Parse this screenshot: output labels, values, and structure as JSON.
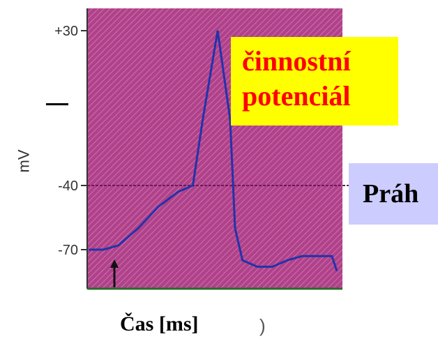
{
  "chart_data": {
    "type": "line",
    "title": "",
    "xlabel": "Čas [ms]",
    "ylabel": "mV",
    "yticks": [
      "+30",
      "-40",
      "-70"
    ],
    "ytick_values": [
      30,
      -40,
      -70
    ],
    "ylim": [
      -80,
      35
    ],
    "threshold": -40,
    "series": [
      {
        "x": [
          0,
          6,
          12,
          20,
          28,
          36,
          42,
          46,
          52,
          57,
          59,
          62,
          68,
          74,
          80,
          86,
          92,
          98,
          100
        ],
        "y": [
          -70,
          -70,
          -68,
          -60,
          -50,
          -43,
          -40,
          -10,
          30,
          -10,
          -60,
          -75,
          -78,
          -78,
          -75,
          -73,
          -73,
          -73,
          -80
        ]
      }
    ],
    "grid": false,
    "background": "#b0418a",
    "line_color": "#2233aa",
    "threshold_color": "#6a1a5a"
  },
  "annotations": {
    "action_potential": "činnostní potenciál",
    "action_potential_line1": "činnostní",
    "action_potential_line2": "potenciál",
    "threshold_label": "Práh",
    "stray_mark": ")"
  },
  "colors": {
    "ap_box_bg": "#ffff00",
    "ap_box_text": "#ff0000",
    "threshold_box_bg": "#ccccff"
  }
}
